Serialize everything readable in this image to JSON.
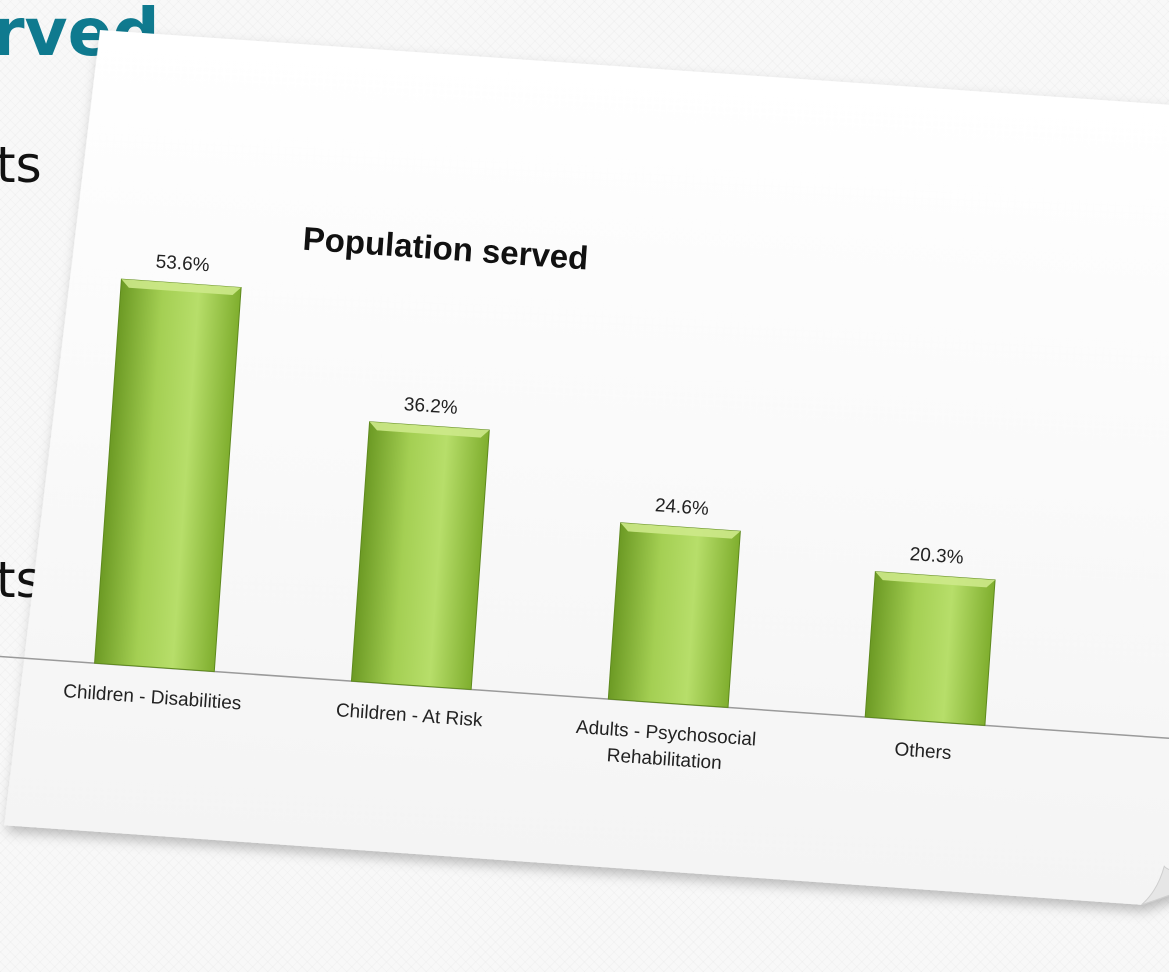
{
  "slide": {
    "title_fragment": "rved",
    "bullet_fragments": [
      "ts",
      "ts"
    ]
  },
  "colors": {
    "title": "#0f7a8f",
    "bar_light": "#b7de6a",
    "bar_dark": "#6c9a24",
    "bar_top": "#cde98a",
    "paper": "#ffffff"
  },
  "chart_data": {
    "type": "bar",
    "title": "Population served",
    "categories": [
      [
        "Children - Disabilities"
      ],
      [
        "Children - At Risk"
      ],
      [
        "Adults - Psychosocial",
        "Rehabilitation"
      ],
      [
        "Others"
      ]
    ],
    "values": [
      53.6,
      36.2,
      24.6,
      20.3
    ],
    "value_labels": [
      "53.6%",
      "36.2%",
      "24.6%",
      "20.3%"
    ],
    "ylim": [
      0,
      55
    ],
    "grid": false,
    "legend": "none",
    "xlabel": "",
    "ylabel": ""
  }
}
